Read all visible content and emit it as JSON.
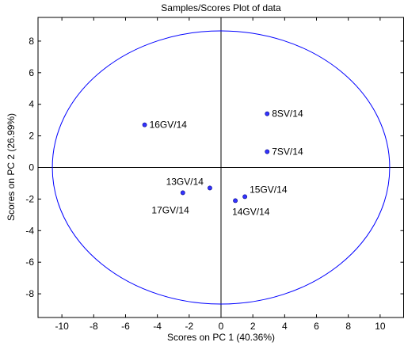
{
  "chart_data": {
    "type": "scatter",
    "title": "Samples/Scores Plot of data",
    "xlabel": "Scores on PC 1 (40.36%)",
    "ylabel": "Scores on PC 2 (26.99%)",
    "xlim": [
      -11.5,
      11.5
    ],
    "ylim": [
      -9.5,
      9.5
    ],
    "xticks": [
      -10,
      -8,
      -6,
      -4,
      -2,
      0,
      2,
      4,
      6,
      8,
      10
    ],
    "yticks": [
      -8,
      -6,
      -4,
      -2,
      0,
      2,
      4,
      6,
      8
    ],
    "grid": false,
    "reference_lines": {
      "x": 0,
      "y": 0
    },
    "confidence_ellipse": {
      "cx": 0,
      "cy": 0,
      "rx": 10.6,
      "ry": 8.65,
      "color": "#0000ff"
    },
    "marker_color": "#3333ff",
    "points": [
      {
        "label": "16GV/14",
        "x": -4.8,
        "y": 2.7
      },
      {
        "label": "8SV/14",
        "x": 2.9,
        "y": 3.4
      },
      {
        "label": "7SV/14",
        "x": 2.9,
        "y": 1.0
      },
      {
        "label": "13GV/14",
        "x": -0.7,
        "y": -1.3
      },
      {
        "label": "17GV/14",
        "x": -2.4,
        "y": -1.6
      },
      {
        "label": "15GV/14",
        "x": 1.5,
        "y": -1.85
      },
      {
        "label": "14GV/14",
        "x": 0.9,
        "y": -2.1
      }
    ]
  }
}
